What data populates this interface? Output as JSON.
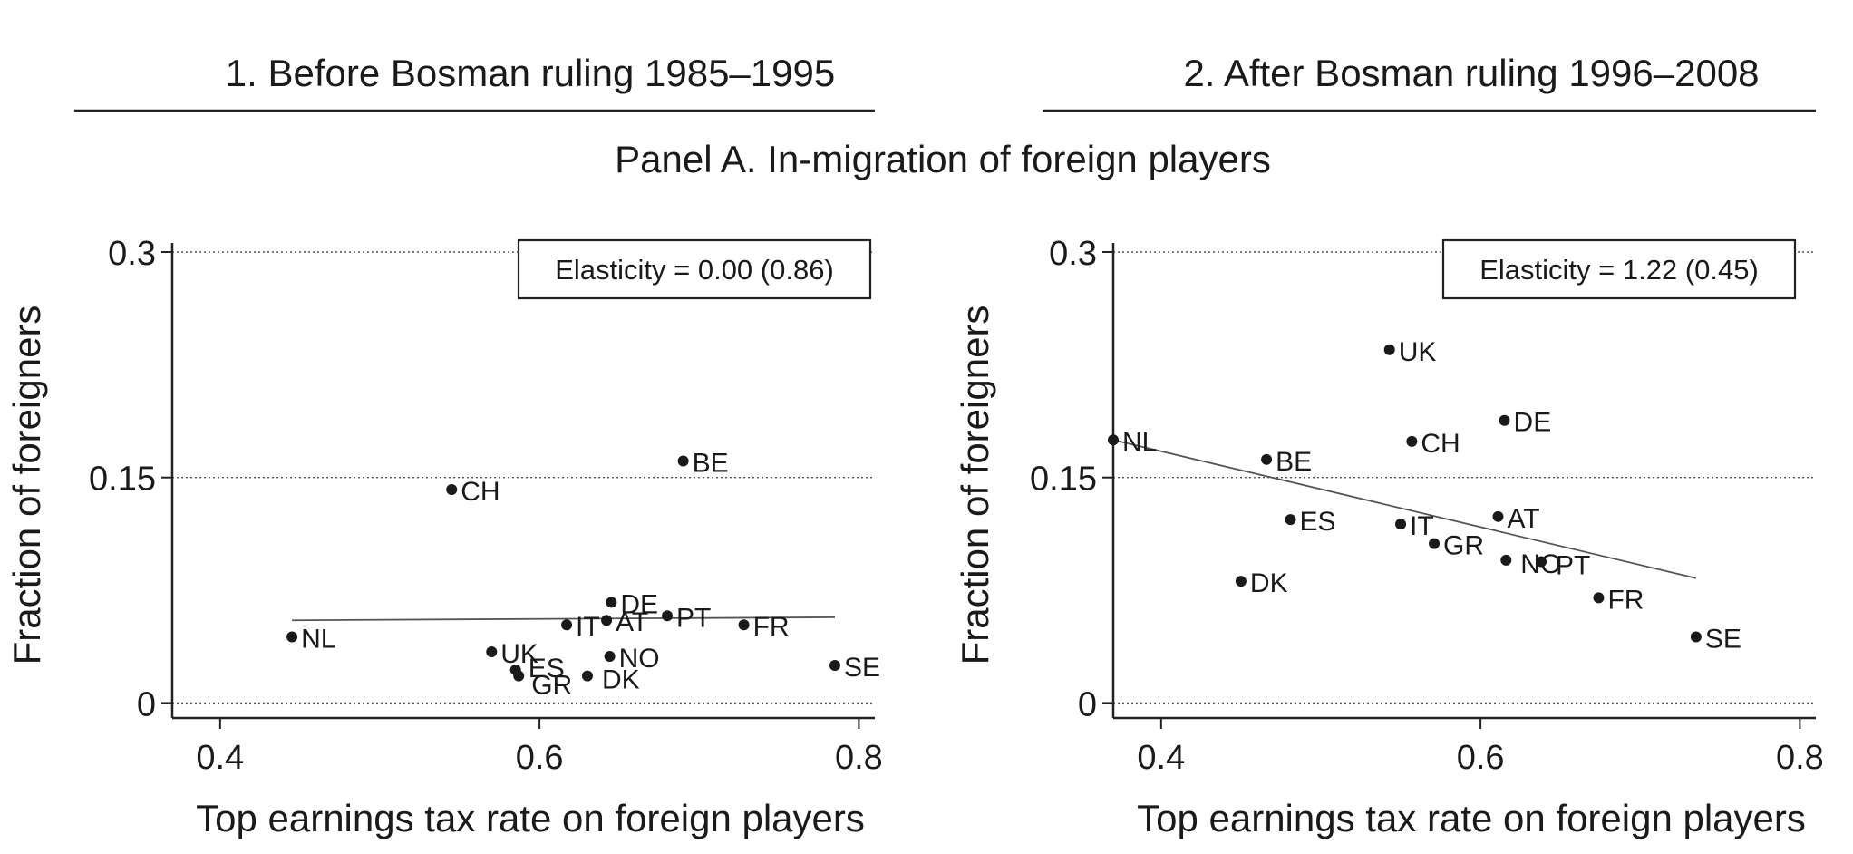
{
  "figure": {
    "panel_title": "Panel A. In-migration of foreign players"
  },
  "chart_data": [
    {
      "type": "scatter",
      "header": "1. Before Bosman ruling 1985–1995",
      "xlabel": "Top earnings tax rate on foreign players",
      "ylabel": "Fraction of foreigners",
      "xlim": [
        0.37,
        0.81
      ],
      "ylim": [
        -0.01,
        0.3
      ],
      "xticks": [
        0.4,
        0.6,
        0.8
      ],
      "xtick_labels": [
        "0.4",
        "0.6",
        "0.8"
      ],
      "yticks": [
        0,
        0.15,
        0.3
      ],
      "ytick_labels": [
        "0",
        "0.15",
        "0.3"
      ],
      "grid": "horizontal dotted at y ticks",
      "annotation": "Elasticity = 0.00 (0.86)",
      "annotation_placement": "top-right",
      "fit_line": {
        "x": [
          0.445,
          0.785
        ],
        "y": [
          0.055,
          0.057
        ]
      },
      "points": [
        {
          "label": "NL",
          "x": 0.445,
          "y": 0.044
        },
        {
          "label": "CH",
          "x": 0.545,
          "y": 0.142
        },
        {
          "label": "BE",
          "x": 0.69,
          "y": 0.161
        },
        {
          "label": "UK",
          "x": 0.57,
          "y": 0.034
        },
        {
          "label": "ES",
          "x": 0.585,
          "y": 0.022
        },
        {
          "label": "GR",
          "x": 0.587,
          "y": 0.018
        },
        {
          "label": "IT",
          "x": 0.617,
          "y": 0.052
        },
        {
          "label": "AT",
          "x": 0.642,
          "y": 0.055
        },
        {
          "label": "DE",
          "x": 0.645,
          "y": 0.067
        },
        {
          "label": "NO",
          "x": 0.644,
          "y": 0.031
        },
        {
          "label": "DK",
          "x": 0.63,
          "y": 0.018
        },
        {
          "label": "PT",
          "x": 0.68,
          "y": 0.058
        },
        {
          "label": "FR",
          "x": 0.728,
          "y": 0.052
        },
        {
          "label": "SE",
          "x": 0.785,
          "y": 0.025
        }
      ]
    },
    {
      "type": "scatter",
      "header": "2. After Bosman ruling 1996–2008",
      "xlabel": "Top earnings tax rate on foreign players",
      "ylabel": "Fraction of foreigners",
      "xlim": [
        0.37,
        0.81
      ],
      "ylim": [
        -0.01,
        0.3
      ],
      "xticks": [
        0.4,
        0.6,
        0.8
      ],
      "xtick_labels": [
        "0.4",
        "0.6",
        "0.8"
      ],
      "yticks": [
        0,
        0.15,
        0.3
      ],
      "ytick_labels": [
        "0",
        "0.15",
        "0.3"
      ],
      "grid": "horizontal dotted at y ticks",
      "annotation": "Elasticity =  1.22 (0.45)",
      "annotation_placement": "top-right",
      "fit_line": {
        "x": [
          0.37,
          0.735
        ],
        "y": [
          0.175,
          0.083
        ]
      },
      "points": [
        {
          "label": "UK",
          "x": 0.543,
          "y": 0.235
        },
        {
          "label": "DE",
          "x": 0.615,
          "y": 0.188
        },
        {
          "label": "NL",
          "x": 0.37,
          "y": 0.175
        },
        {
          "label": "CH",
          "x": 0.557,
          "y": 0.174
        },
        {
          "label": "BE",
          "x": 0.466,
          "y": 0.162
        },
        {
          "label": "ES",
          "x": 0.481,
          "y": 0.122
        },
        {
          "label": "IT",
          "x": 0.55,
          "y": 0.119
        },
        {
          "label": "AT",
          "x": 0.611,
          "y": 0.124
        },
        {
          "label": "GR",
          "x": 0.571,
          "y": 0.106
        },
        {
          "label": "NO",
          "x": 0.616,
          "y": 0.095
        },
        {
          "label": "PT",
          "x": 0.638,
          "y": 0.094
        },
        {
          "label": "DK",
          "x": 0.45,
          "y": 0.081
        },
        {
          "label": "FR",
          "x": 0.674,
          "y": 0.07
        },
        {
          "label": "SE",
          "x": 0.735,
          "y": 0.044
        }
      ]
    }
  ]
}
